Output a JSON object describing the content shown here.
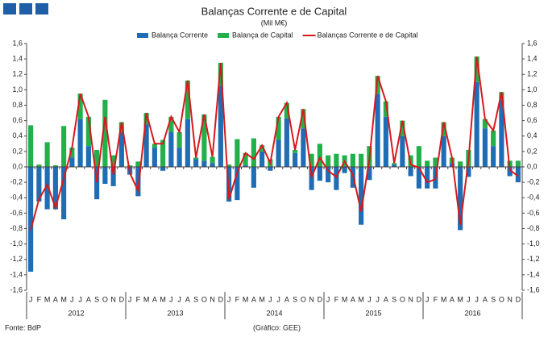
{
  "chart_data": {
    "type": "bar",
    "stacked": true,
    "title": "Balanças Corrente e de Capital",
    "subtitle": "(Mil M€)",
    "source": "Fonte: BdP",
    "credit": "(Gráfico: GEE)",
    "categories": [
      "J",
      "F",
      "M",
      "A",
      "M",
      "J",
      "J",
      "A",
      "S",
      "O",
      "N",
      "D",
      "J",
      "F",
      "M",
      "A",
      "M",
      "J",
      "J",
      "A",
      "S",
      "O",
      "N",
      "D",
      "J",
      "F",
      "M",
      "A",
      "M",
      "J",
      "J",
      "A",
      "S",
      "O",
      "N",
      "D",
      "J",
      "F",
      "M",
      "A",
      "M",
      "J",
      "J",
      "A",
      "S",
      "O",
      "N",
      "D",
      "J",
      "F",
      "M",
      "A",
      "M",
      "J",
      "J",
      "A",
      "S",
      "O",
      "N",
      "D"
    ],
    "groups": [
      "2012",
      "2013",
      "2014",
      "2015",
      "2016"
    ],
    "group_size": 12,
    "series": [
      {
        "name": "Balança Corrente",
        "type": "bar",
        "color": "#1f6db5",
        "values": [
          -1.36,
          -0.45,
          -0.55,
          -0.55,
          -0.68,
          0.12,
          0.62,
          0.27,
          -0.42,
          -0.22,
          -0.25,
          0.45,
          -0.1,
          -0.38,
          0.55,
          0.25,
          -0.05,
          0.45,
          0.25,
          0.62,
          0.1,
          0.08,
          0.05,
          1.05,
          -0.45,
          -0.43,
          0.02,
          -0.27,
          0.2,
          -0.05,
          0.35,
          0.63,
          0.18,
          0.5,
          -0.3,
          -0.18,
          -0.2,
          -0.3,
          -0.08,
          -0.27,
          -0.75,
          -0.17,
          0.95,
          0.65,
          0.03,
          0.4,
          -0.12,
          -0.28,
          -0.28,
          -0.28,
          0.4,
          0.05,
          -0.82,
          -0.13,
          1.1,
          0.5,
          0.27,
          0.87,
          -0.12,
          -0.2
        ]
      },
      {
        "name": "Balança de Capital",
        "type": "bar",
        "color": "#22b04b",
        "values": [
          0.54,
          0.03,
          0.32,
          0.02,
          0.53,
          0.13,
          0.33,
          0.38,
          0.22,
          0.87,
          0.15,
          0.13,
          0.02,
          0.07,
          0.15,
          0.05,
          0.35,
          0.2,
          0.2,
          0.5,
          0.02,
          0.6,
          0.08,
          0.3,
          0.03,
          0.36,
          0.16,
          0.37,
          0.08,
          0.1,
          0.3,
          0.2,
          0.04,
          0.25,
          0.17,
          0.3,
          0.15,
          0.17,
          0.15,
          0.17,
          0.17,
          0.27,
          0.23,
          0.2,
          0.02,
          0.2,
          0.15,
          0.27,
          0.08,
          0.12,
          0.18,
          0.07,
          0.07,
          0.22,
          0.33,
          0.12,
          0.2,
          0.1,
          0.08,
          0.08
        ]
      },
      {
        "name": "Balanças Corrente e de Capital",
        "type": "line",
        "color": "#d7191c",
        "values": [
          -0.82,
          -0.42,
          -0.23,
          -0.53,
          -0.15,
          0.25,
          0.95,
          0.65,
          -0.2,
          0.65,
          -0.1,
          0.58,
          -0.08,
          -0.31,
          0.7,
          0.3,
          0.3,
          0.65,
          0.45,
          1.12,
          0.12,
          0.68,
          0.13,
          1.35,
          -0.42,
          -0.07,
          0.18,
          0.1,
          0.28,
          0.05,
          0.65,
          0.83,
          0.22,
          0.75,
          -0.13,
          0.12,
          -0.05,
          -0.13,
          0.07,
          -0.1,
          -0.58,
          0.1,
          1.18,
          0.85,
          0.05,
          0.6,
          0.03,
          -0.01,
          -0.2,
          -0.16,
          0.58,
          0.12,
          -0.75,
          0.09,
          1.43,
          0.62,
          0.47,
          0.97,
          -0.04,
          -0.12
        ]
      }
    ],
    "ylim": [
      -1.6,
      1.6
    ],
    "yticks": [
      {
        "value": -1.6,
        "label": "-1,6"
      },
      {
        "value": -1.4,
        "label": "-1,4"
      },
      {
        "value": -1.2,
        "label": "-1,2"
      },
      {
        "value": -1.0,
        "label": "-1,0"
      },
      {
        "value": -0.8,
        "label": "-0,8"
      },
      {
        "value": -0.6,
        "label": "-0,6"
      },
      {
        "value": -0.4,
        "label": "-0,4"
      },
      {
        "value": -0.2,
        "label": "-0,2"
      },
      {
        "value": 0,
        "label": "0,0"
      },
      {
        "value": 0.2,
        "label": "0,2"
      },
      {
        "value": 0.4,
        "label": "0,4"
      },
      {
        "value": 0.6,
        "label": "0,6"
      },
      {
        "value": 0.8,
        "label": "0,8"
      },
      {
        "value": 1.0,
        "label": "1,0"
      },
      {
        "value": 1.2,
        "label": "1,2"
      },
      {
        "value": 1.4,
        "label": "1,4"
      },
      {
        "value": 1.6,
        "label": "1,6"
      }
    ],
    "y2lim": [
      -1.6,
      1.6
    ],
    "y2ticks": [
      {
        "value": -1.6,
        "label": "-1,6"
      },
      {
        "value": -1.4,
        "label": "-1,4"
      },
      {
        "value": -1.2,
        "label": "-1,2"
      },
      {
        "value": -1.0,
        "label": "-1,0"
      },
      {
        "value": -0.8,
        "label": "-0,8"
      },
      {
        "value": -0.6,
        "label": "-0,6"
      },
      {
        "value": -0.4,
        "label": "-0,4"
      },
      {
        "value": -0.2,
        "label": "-0,2"
      },
      {
        "value": 0,
        "label": "0,0"
      },
      {
        "value": 0.2,
        "label": "0,2"
      },
      {
        "value": 0.4,
        "label": "0,4"
      },
      {
        "value": 0.6,
        "label": "0,6"
      },
      {
        "value": 0.8,
        "label": "0,8"
      },
      {
        "value": 1.0,
        "label": "1,0"
      },
      {
        "value": 1.2,
        "label": "1,2"
      },
      {
        "value": 1.4,
        "label": "1,4"
      },
      {
        "value": 1.6,
        "label": "1,6"
      }
    ],
    "grid": false
  }
}
